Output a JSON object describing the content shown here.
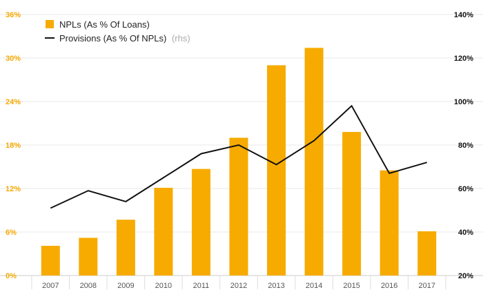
{
  "chart_data": {
    "type": "bar",
    "categories": [
      "2007",
      "2008",
      "2009",
      "2010",
      "2011",
      "2012",
      "2013",
      "2014",
      "2015",
      "2016",
      "2017"
    ],
    "series": [
      {
        "name": "NPLs (As % Of Loans)",
        "axis": "left",
        "kind": "bar",
        "color": "#f7ab00",
        "values": [
          4.1,
          5.2,
          7.7,
          12.1,
          14.7,
          19.0,
          29.0,
          31.4,
          19.8,
          14.5,
          6.1
        ]
      },
      {
        "name": "Provisions (As % Of NPLs)",
        "name_suffix": "(rhs)",
        "axis": "right",
        "kind": "line",
        "color": "#111111",
        "values": [
          51,
          59,
          54,
          65,
          76,
          80,
          71,
          82,
          98,
          67,
          72
        ]
      }
    ],
    "y_left": {
      "ylim": [
        0,
        36
      ],
      "ticks": [
        "0%",
        "6%",
        "12%",
        "18%",
        "24%",
        "30%",
        "36%"
      ],
      "tick_values": [
        0,
        6,
        12,
        18,
        24,
        30,
        36
      ]
    },
    "y_right": {
      "ylim": [
        20,
        140
      ],
      "ticks": [
        "20%",
        "40%",
        "60%",
        "80%",
        "100%",
        "120%",
        "140%"
      ],
      "tick_values": [
        20,
        40,
        60,
        80,
        100,
        120,
        140
      ]
    },
    "grid": true,
    "legend_position": "top-left"
  }
}
